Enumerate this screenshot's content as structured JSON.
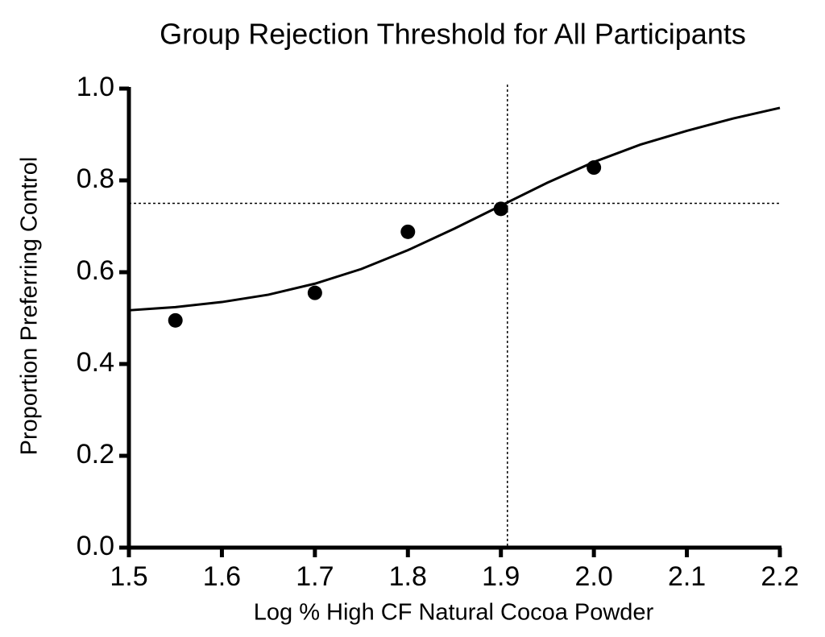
{
  "chart_data": {
    "type": "scatter",
    "title": "Group Rejection Threshold for All Participants",
    "x_label": "Log % High CF Natural Cocoa Powder",
    "y_label": "Proportion Preferring Control",
    "color": "#000000",
    "points": {
      "x": [
        1.55,
        1.7,
        1.8,
        1.9,
        2.0
      ],
      "values": [
        0.495,
        0.555,
        0.688,
        0.738,
        0.828
      ]
    },
    "fit": {
      "x": [
        1.5,
        1.55,
        1.6,
        1.65,
        1.7,
        1.75,
        1.8,
        1.85,
        1.9,
        1.95,
        2.0,
        2.05,
        2.1,
        2.15,
        2.2
      ],
      "values": [
        0.517,
        0.524,
        0.535,
        0.551,
        0.575,
        0.607,
        0.648,
        0.695,
        0.745,
        0.795,
        0.84,
        0.878,
        0.908,
        0.935,
        0.958
      ]
    },
    "threshold_x": 1.907,
    "threshold_y": 0.75,
    "xlim": [
      1.5,
      2.2
    ],
    "ylim": [
      0,
      1.0
    ],
    "xticks": [
      1.5,
      1.6,
      1.7,
      1.8,
      1.9,
      {
        "value": 2.0,
        "label": "2.0"
      },
      2.1,
      2.2
    ],
    "yticks": [
      {
        "value": 0,
        "label": "0.0"
      },
      0.2,
      0.4,
      0.6,
      0.8,
      {
        "value": 1.0,
        "label": "1.0"
      }
    ],
    "grid": false
  }
}
